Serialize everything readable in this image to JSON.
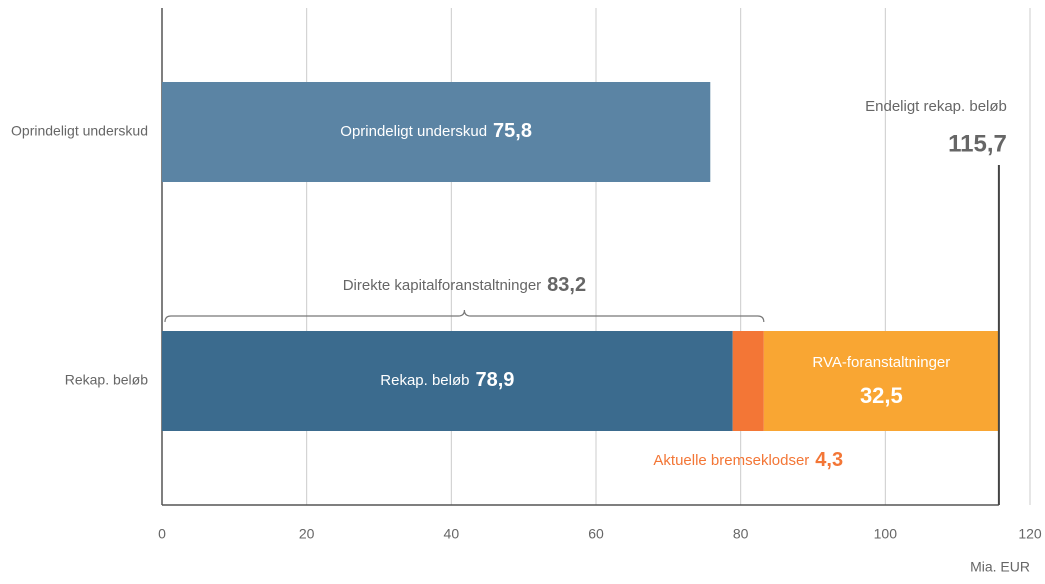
{
  "chart_data": {
    "type": "stacked_bar_horizontal",
    "categories": [
      "Oprindeligt underskud",
      "Rekap. beløb"
    ],
    "series": [
      {
        "name": "Oprindeligt underskud",
        "color": "#5b84a4",
        "values": [
          75.8,
          null
        ],
        "value_labels": [
          "75,8",
          null
        ]
      },
      {
        "name": "Rekap. beløb",
        "color": "#3b6b8e",
        "values": [
          null,
          78.9
        ],
        "value_labels": [
          null,
          "78,9"
        ]
      },
      {
        "name": "Aktuelle bremseklodser",
        "color": "#f37636",
        "values": [
          null,
          4.3
        ],
        "value_labels": [
          null,
          "4,3"
        ]
      },
      {
        "name": "RVA-foranstaltninger",
        "color": "#f9a633",
        "values": [
          null,
          32.5
        ],
        "value_labels": [
          null,
          "32,5"
        ]
      }
    ],
    "xlim": [
      0,
      120
    ],
    "xticks": [
      0,
      20,
      40,
      60,
      80,
      100,
      120
    ],
    "xlabel": "Mia. EUR",
    "grid": true,
    "annotations": [
      {
        "text": "Direkte kapitalforanstaltninger",
        "value": 83.2,
        "label": "83,2"
      },
      {
        "text": "Endeligt rekap. beløb",
        "value": 115.7,
        "label": "115,7"
      }
    ]
  }
}
